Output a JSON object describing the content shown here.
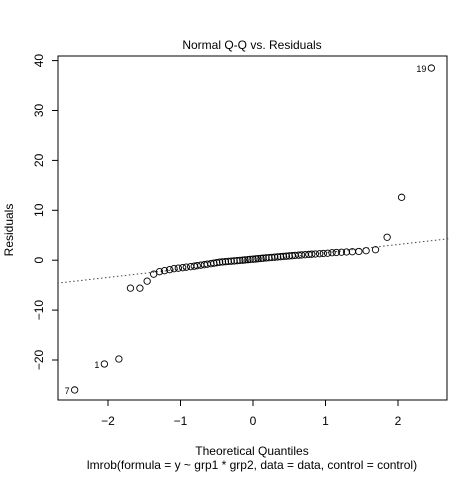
{
  "chart_data": {
    "type": "scatter",
    "title": "Normal Q-Q vs. Residuals",
    "xlabel": "Theoretical Quantiles",
    "ylabel": "Residuals",
    "subtitle": "lmrob(formula = y ~ grp1 * grp2, data = data, control = control)",
    "xlim": [
      -2.7,
      2.7
    ],
    "ylim": [
      -28,
      41
    ],
    "xticks": [
      -2,
      -1,
      0,
      1,
      2
    ],
    "yticks": [
      -20,
      -10,
      0,
      10,
      20,
      30,
      40
    ],
    "grid": false,
    "reference_line": {
      "style": "dotted",
      "x": [
        -2.7,
        2.7
      ],
      "y": [
        -4.6,
        4.3
      ]
    },
    "annotations": [
      {
        "text": "19",
        "x": 2.46,
        "y": 38.5
      },
      {
        "text": "1",
        "x": -2.05,
        "y": -20.8
      },
      {
        "text": "7",
        "x": -2.46,
        "y": -26.0
      }
    ],
    "points": [
      {
        "x": -2.46,
        "y": -26.0
      },
      {
        "x": -2.05,
        "y": -20.8
      },
      {
        "x": -1.85,
        "y": -19.8
      },
      {
        "x": -1.69,
        "y": -5.6
      },
      {
        "x": -1.56,
        "y": -5.6
      },
      {
        "x": -1.46,
        "y": -4.2
      },
      {
        "x": -1.37,
        "y": -2.8
      },
      {
        "x": -1.29,
        "y": -2.3
      },
      {
        "x": -1.22,
        "y": -2.1
      },
      {
        "x": -1.15,
        "y": -1.9
      },
      {
        "x": -1.09,
        "y": -1.7
      },
      {
        "x": -1.03,
        "y": -1.6
      },
      {
        "x": -0.97,
        "y": -1.5
      },
      {
        "x": -0.92,
        "y": -1.4
      },
      {
        "x": -0.86,
        "y": -1.3
      },
      {
        "x": -0.81,
        "y": -1.2
      },
      {
        "x": -0.77,
        "y": -1.1
      },
      {
        "x": -0.72,
        "y": -1.0
      },
      {
        "x": -0.67,
        "y": -0.9
      },
      {
        "x": -0.63,
        "y": -0.8
      },
      {
        "x": -0.58,
        "y": -0.7
      },
      {
        "x": -0.54,
        "y": -0.6
      },
      {
        "x": -0.5,
        "y": -0.5
      },
      {
        "x": -0.46,
        "y": -0.4
      },
      {
        "x": -0.42,
        "y": -0.35
      },
      {
        "x": -0.38,
        "y": -0.3
      },
      {
        "x": -0.34,
        "y": -0.25
      },
      {
        "x": -0.3,
        "y": -0.2
      },
      {
        "x": -0.26,
        "y": -0.15
      },
      {
        "x": -0.22,
        "y": -0.1
      },
      {
        "x": -0.18,
        "y": -0.05
      },
      {
        "x": -0.14,
        "y": 0.0
      },
      {
        "x": -0.11,
        "y": 0.05
      },
      {
        "x": -0.07,
        "y": 0.1
      },
      {
        "x": -0.04,
        "y": 0.15
      },
      {
        "x": 0.0,
        "y": 0.2
      },
      {
        "x": 0.04,
        "y": 0.25
      },
      {
        "x": 0.07,
        "y": 0.3
      },
      {
        "x": 0.11,
        "y": 0.35
      },
      {
        "x": 0.14,
        "y": 0.4
      },
      {
        "x": 0.18,
        "y": 0.45
      },
      {
        "x": 0.22,
        "y": 0.5
      },
      {
        "x": 0.26,
        "y": 0.55
      },
      {
        "x": 0.3,
        "y": 0.6
      },
      {
        "x": 0.34,
        "y": 0.65
      },
      {
        "x": 0.38,
        "y": 0.7
      },
      {
        "x": 0.42,
        "y": 0.75
      },
      {
        "x": 0.46,
        "y": 0.8
      },
      {
        "x": 0.5,
        "y": 0.85
      },
      {
        "x": 0.54,
        "y": 0.9
      },
      {
        "x": 0.58,
        "y": 0.95
      },
      {
        "x": 0.63,
        "y": 1.0
      },
      {
        "x": 0.67,
        "y": 1.05
      },
      {
        "x": 0.72,
        "y": 1.1
      },
      {
        "x": 0.77,
        "y": 1.15
      },
      {
        "x": 0.81,
        "y": 1.2
      },
      {
        "x": 0.86,
        "y": 1.25
      },
      {
        "x": 0.92,
        "y": 1.3
      },
      {
        "x": 0.97,
        "y": 1.35
      },
      {
        "x": 1.03,
        "y": 1.4
      },
      {
        "x": 1.09,
        "y": 1.5
      },
      {
        "x": 1.15,
        "y": 1.55
      },
      {
        "x": 1.22,
        "y": 1.6
      },
      {
        "x": 1.29,
        "y": 1.65
      },
      {
        "x": 1.37,
        "y": 1.7
      },
      {
        "x": 1.46,
        "y": 1.75
      },
      {
        "x": 1.56,
        "y": 1.9
      },
      {
        "x": 1.69,
        "y": 2.1
      },
      {
        "x": 1.85,
        "y": 4.6
      },
      {
        "x": 2.05,
        "y": 12.6
      },
      {
        "x": 2.46,
        "y": 38.5
      }
    ]
  }
}
